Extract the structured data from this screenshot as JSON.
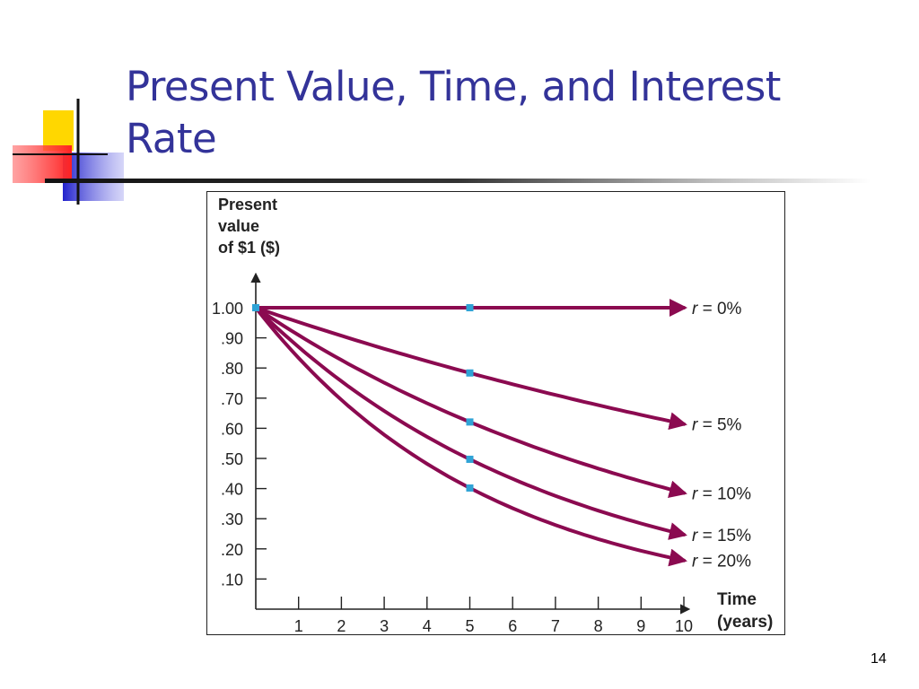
{
  "slide": {
    "title": "Present Value, Time, and Interest Rate",
    "page_number": "14"
  },
  "colors": {
    "title": "#333399",
    "curve": "#8B0A50",
    "marker": "#2FA3D6",
    "deco_yellow": "#FFD700",
    "deco_blue": "#3333CC",
    "deco_red": "#FF4444"
  },
  "chart_data": {
    "type": "line",
    "title": "",
    "ylabel_lines": [
      "Present",
      "value",
      "of $1 ($)"
    ],
    "xlabel_lines": [
      "Time",
      "(years)"
    ],
    "x_ticks": [
      1,
      2,
      3,
      4,
      5,
      6,
      7,
      8,
      9,
      10
    ],
    "x_tick_labels": [
      "1",
      "2",
      "3",
      "4",
      "5",
      "6",
      "7",
      "8",
      "9",
      "10"
    ],
    "y_ticks": [
      0.1,
      0.2,
      0.3,
      0.4,
      0.5,
      0.6,
      0.7,
      0.8,
      0.9,
      1.0
    ],
    "y_tick_labels": [
      ".10",
      ".20",
      ".30",
      ".40",
      ".50",
      ".60",
      ".70",
      ".80",
      ".90",
      "1.00"
    ],
    "xlim": [
      0,
      10
    ],
    "ylim": [
      0,
      1.0
    ],
    "grid": false,
    "marker_x": [
      0,
      5
    ],
    "series": [
      {
        "label_r": "r",
        "label_value": " = 0%",
        "rate": 0.0
      },
      {
        "label_r": "r",
        "label_value": " = 5%",
        "rate": 0.05
      },
      {
        "label_r": "r",
        "label_value": " = 10%",
        "rate": 0.1
      },
      {
        "label_r": "r",
        "label_value": " = 15%",
        "rate": 0.15
      },
      {
        "label_r": "r",
        "label_value": " = 20%",
        "rate": 0.2
      }
    ]
  }
}
